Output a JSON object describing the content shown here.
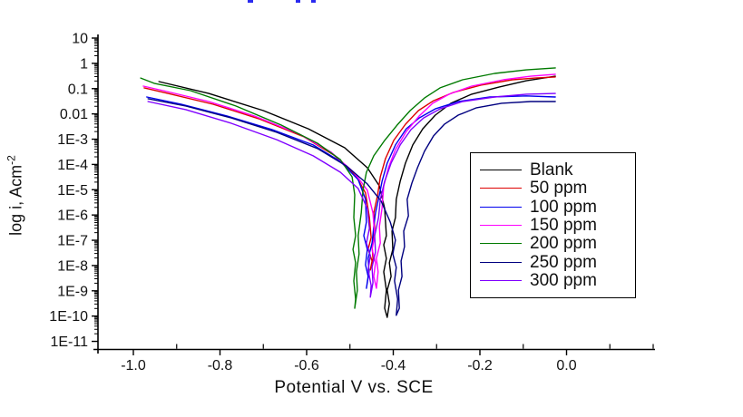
{
  "figure": {
    "background": "#ffffff",
    "clipped_header": {
      "color": "#2a2af0",
      "fragments": [
        {
          "x": 273,
          "w": 6
        },
        {
          "x": 326,
          "w": 5
        },
        {
          "x": 343,
          "w": 5
        }
      ]
    }
  },
  "chart_data": {
    "type": "line",
    "title": "",
    "xlabel": "Potential V vs. SCE",
    "ylabel": "log i, Acm",
    "ylabel_superscript": "-2",
    "grid": false,
    "legend_position": "center-right",
    "x_axis": {
      "min": -1.08,
      "max": 0.2,
      "ticks": [
        -1.0,
        -0.8,
        -0.6,
        -0.4,
        -0.2,
        0.0
      ],
      "tick_labels": [
        "-1.0",
        "-0.8",
        "-0.6",
        "-0.4",
        "-0.2",
        "0.0"
      ],
      "minor_ticks": [
        -0.9,
        -0.7,
        -0.5,
        -0.3,
        -0.1,
        0.1,
        0.2
      ]
    },
    "y_axis": {
      "scale": "log",
      "max_exp": 1,
      "min_exp": -11,
      "tick_labels": [
        "10",
        "1",
        "0.1",
        "0.01",
        "1E-3",
        "1E-4",
        "1E-5",
        "1E-6",
        "1E-7",
        "1E-8",
        "1E-9",
        "1E-10",
        "1E-11"
      ]
    },
    "legend": {
      "entries": [
        {
          "label": "Blank",
          "color": "#000000"
        },
        {
          "label": "50 ppm",
          "color": "#DD0000"
        },
        {
          "label": "100 ppm",
          "color": "#0000EE"
        },
        {
          "label": "150 ppm",
          "color": "#FF00FF"
        },
        {
          "label": "200 ppm",
          "color": "#007A00"
        },
        {
          "label": "250 ppm",
          "color": "#000080"
        },
        {
          "label": "300 ppm",
          "color": "#7F00FF"
        }
      ]
    },
    "series": [
      {
        "name": "Blank",
        "color": "#000000",
        "points": [
          [
            -0.941,
            -0.72
          ],
          [
            -0.826,
            -1.19
          ],
          [
            -0.7,
            -1.87
          ],
          [
            -0.596,
            -2.59
          ],
          [
            -0.512,
            -3.34
          ],
          [
            -0.46,
            -4.13
          ],
          [
            -0.432,
            -4.85
          ],
          [
            -0.42,
            -5.74
          ],
          [
            -0.416,
            -6.82
          ],
          [
            -0.422,
            -7.18
          ],
          [
            -0.416,
            -7.72
          ],
          [
            -0.422,
            -8.25
          ],
          [
            -0.416,
            -8.97
          ],
          [
            -0.42,
            -9.69
          ],
          [
            -0.414,
            -10.05
          ],
          [
            -0.409,
            -9.51
          ],
          [
            -0.414,
            -8.97
          ],
          [
            -0.405,
            -8.43
          ],
          [
            -0.409,
            -7.89
          ],
          [
            -0.401,
            -7.36
          ],
          [
            -0.403,
            -6.64
          ],
          [
            -0.395,
            -6.1
          ],
          [
            -0.393,
            -5.38
          ],
          [
            -0.384,
            -4.67
          ],
          [
            -0.372,
            -3.95
          ],
          [
            -0.355,
            -3.23
          ],
          [
            -0.332,
            -2.59
          ],
          [
            -0.303,
            -2.05
          ],
          [
            -0.267,
            -1.58
          ],
          [
            -0.219,
            -1.22
          ],
          [
            -0.156,
            -0.94
          ],
          [
            -0.093,
            -0.69
          ],
          [
            -0.026,
            -0.51
          ]
        ]
      },
      {
        "name": "50 ppm",
        "color": "#DD0000",
        "points": [
          [
            -0.975,
            -0.97
          ],
          [
            -0.92,
            -1.19
          ],
          [
            -0.816,
            -1.62
          ],
          [
            -0.711,
            -2.19
          ],
          [
            -0.606,
            -2.91
          ],
          [
            -0.537,
            -3.63
          ],
          [
            -0.487,
            -4.42
          ],
          [
            -0.464,
            -5.13
          ],
          [
            -0.455,
            -6.1
          ],
          [
            -0.451,
            -6.89
          ],
          [
            -0.458,
            -7.36
          ],
          [
            -0.449,
            -7.82
          ],
          [
            -0.453,
            -8.18
          ],
          [
            -0.447,
            -7.72
          ],
          [
            -0.449,
            -7.18
          ],
          [
            -0.443,
            -6.53
          ],
          [
            -0.445,
            -5.92
          ],
          [
            -0.436,
            -5.2
          ],
          [
            -0.43,
            -4.49
          ],
          [
            -0.418,
            -3.77
          ],
          [
            -0.399,
            -3.05
          ],
          [
            -0.372,
            -2.41
          ],
          [
            -0.342,
            -1.87
          ],
          [
            -0.307,
            -1.48
          ],
          [
            -0.261,
            -1.15
          ],
          [
            -0.198,
            -0.86
          ],
          [
            -0.125,
            -0.65
          ],
          [
            -0.072,
            -0.58
          ],
          [
            -0.026,
            -0.54
          ]
        ]
      },
      {
        "name": "100 ppm",
        "color": "#0000EE",
        "points": [
          [
            -0.969,
            -1.33
          ],
          [
            -0.889,
            -1.62
          ],
          [
            -0.784,
            -2.08
          ],
          [
            -0.68,
            -2.62
          ],
          [
            -0.585,
            -3.23
          ],
          [
            -0.522,
            -3.88
          ],
          [
            -0.481,
            -4.6
          ],
          [
            -0.464,
            -5.38
          ],
          [
            -0.462,
            -6.28
          ],
          [
            -0.468,
            -6.82
          ],
          [
            -0.46,
            -7.36
          ],
          [
            -0.464,
            -7.97
          ],
          [
            -0.458,
            -8.43
          ],
          [
            -0.462,
            -8.9
          ],
          [
            -0.456,
            -8.25
          ],
          [
            -0.458,
            -7.72
          ],
          [
            -0.449,
            -7.11
          ],
          [
            -0.445,
            -6.46
          ],
          [
            -0.441,
            -5.92
          ],
          [
            -0.432,
            -5.2
          ],
          [
            -0.426,
            -4.67
          ],
          [
            -0.414,
            -3.95
          ],
          [
            -0.395,
            -3.23
          ],
          [
            -0.37,
            -2.59
          ],
          [
            -0.34,
            -2.16
          ],
          [
            -0.303,
            -1.8
          ],
          [
            -0.25,
            -1.51
          ],
          [
            -0.177,
            -1.33
          ],
          [
            -0.093,
            -1.29
          ],
          [
            -0.026,
            -1.33
          ]
        ]
      },
      {
        "name": "150 ppm",
        "color": "#FF00FF",
        "points": [
          [
            -0.977,
            -0.9
          ],
          [
            -0.931,
            -1.08
          ],
          [
            -0.826,
            -1.51
          ],
          [
            -0.721,
            -2.08
          ],
          [
            -0.617,
            -2.8
          ],
          [
            -0.543,
            -3.52
          ],
          [
            -0.491,
            -4.31
          ],
          [
            -0.46,
            -5.02
          ],
          [
            -0.447,
            -5.92
          ],
          [
            -0.443,
            -6.82
          ],
          [
            -0.449,
            -7.36
          ],
          [
            -0.441,
            -7.89
          ],
          [
            -0.445,
            -8.43
          ],
          [
            -0.439,
            -8.9
          ],
          [
            -0.435,
            -8.25
          ],
          [
            -0.439,
            -7.72
          ],
          [
            -0.43,
            -7.11
          ],
          [
            -0.432,
            -6.46
          ],
          [
            -0.426,
            -5.74
          ],
          [
            -0.422,
            -4.85
          ],
          [
            -0.411,
            -4.13
          ],
          [
            -0.395,
            -3.41
          ],
          [
            -0.37,
            -2.7
          ],
          [
            -0.34,
            -2.08
          ],
          [
            -0.309,
            -1.58
          ],
          [
            -0.271,
            -1.22
          ],
          [
            -0.219,
            -0.9
          ],
          [
            -0.146,
            -0.65
          ],
          [
            -0.083,
            -0.51
          ],
          [
            -0.026,
            -0.43
          ]
        ]
      },
      {
        "name": "200 ppm",
        "color": "#007A00",
        "points": [
          [
            -0.983,
            -0.58
          ],
          [
            -0.952,
            -0.79
          ],
          [
            -0.868,
            -1.08
          ],
          [
            -0.763,
            -1.69
          ],
          [
            -0.659,
            -2.44
          ],
          [
            -0.575,
            -3.16
          ],
          [
            -0.522,
            -3.81
          ],
          [
            -0.495,
            -4.49
          ],
          [
            -0.489,
            -5.2
          ],
          [
            -0.491,
            -6.1
          ],
          [
            -0.487,
            -6.82
          ],
          [
            -0.493,
            -7.36
          ],
          [
            -0.487,
            -7.89
          ],
          [
            -0.491,
            -8.61
          ],
          [
            -0.487,
            -9.33
          ],
          [
            -0.489,
            -9.69
          ],
          [
            -0.483,
            -8.97
          ],
          [
            -0.485,
            -8.25
          ],
          [
            -0.479,
            -7.54
          ],
          [
            -0.481,
            -6.82
          ],
          [
            -0.474,
            -5.92
          ],
          [
            -0.47,
            -5.02
          ],
          [
            -0.462,
            -4.31
          ],
          [
            -0.445,
            -3.66
          ],
          [
            -0.42,
            -3.05
          ],
          [
            -0.391,
            -2.44
          ],
          [
            -0.361,
            -1.87
          ],
          [
            -0.328,
            -1.37
          ],
          [
            -0.292,
            -0.97
          ],
          [
            -0.24,
            -0.65
          ],
          [
            -0.166,
            -0.4
          ],
          [
            -0.093,
            -0.26
          ],
          [
            -0.026,
            -0.18
          ]
        ]
      },
      {
        "name": "250 ppm",
        "color": "#000080",
        "points": [
          [
            -0.966,
            -1.4
          ],
          [
            -0.879,
            -1.69
          ],
          [
            -0.774,
            -2.16
          ],
          [
            -0.669,
            -2.73
          ],
          [
            -0.575,
            -3.37
          ],
          [
            -0.508,
            -4.06
          ],
          [
            -0.46,
            -4.77
          ],
          [
            -0.428,
            -5.45
          ],
          [
            -0.407,
            -6.28
          ],
          [
            -0.395,
            -6.99
          ],
          [
            -0.401,
            -7.54
          ],
          [
            -0.393,
            -8.07
          ],
          [
            -0.397,
            -8.61
          ],
          [
            -0.39,
            -9.33
          ],
          [
            -0.393,
            -9.97
          ],
          [
            -0.386,
            -9.69
          ],
          [
            -0.388,
            -8.97
          ],
          [
            -0.38,
            -8.43
          ],
          [
            -0.382,
            -7.82
          ],
          [
            -0.374,
            -7.25
          ],
          [
            -0.376,
            -6.64
          ],
          [
            -0.365,
            -6.03
          ],
          [
            -0.368,
            -5.38
          ],
          [
            -0.357,
            -4.74
          ],
          [
            -0.344,
            -4.13
          ],
          [
            -0.328,
            -3.48
          ],
          [
            -0.307,
            -2.87
          ],
          [
            -0.282,
            -2.41
          ],
          [
            -0.25,
            -2.05
          ],
          [
            -0.208,
            -1.76
          ],
          [
            -0.15,
            -1.58
          ],
          [
            -0.083,
            -1.51
          ],
          [
            -0.026,
            -1.51
          ]
        ]
      },
      {
        "name": "300 ppm",
        "color": "#7F00FF",
        "points": [
          [
            -0.966,
            -1.51
          ],
          [
            -0.879,
            -1.83
          ],
          [
            -0.774,
            -2.37
          ],
          [
            -0.669,
            -3.02
          ],
          [
            -0.585,
            -3.66
          ],
          [
            -0.522,
            -4.31
          ],
          [
            -0.481,
            -4.95
          ],
          [
            -0.46,
            -5.74
          ],
          [
            -0.455,
            -6.53
          ],
          [
            -0.462,
            -7.11
          ],
          [
            -0.453,
            -7.61
          ],
          [
            -0.458,
            -8.18
          ],
          [
            -0.451,
            -8.79
          ],
          [
            -0.453,
            -9.25
          ],
          [
            -0.447,
            -8.68
          ],
          [
            -0.449,
            -8.07
          ],
          [
            -0.441,
            -7.46
          ],
          [
            -0.443,
            -6.82
          ],
          [
            -0.434,
            -6.1
          ],
          [
            -0.43,
            -5.38
          ],
          [
            -0.42,
            -4.67
          ],
          [
            -0.405,
            -3.95
          ],
          [
            -0.384,
            -3.23
          ],
          [
            -0.359,
            -2.62
          ],
          [
            -0.33,
            -2.16
          ],
          [
            -0.292,
            -1.8
          ],
          [
            -0.24,
            -1.51
          ],
          [
            -0.166,
            -1.33
          ],
          [
            -0.093,
            -1.22
          ],
          [
            -0.026,
            -1.19
          ]
        ]
      }
    ]
  }
}
